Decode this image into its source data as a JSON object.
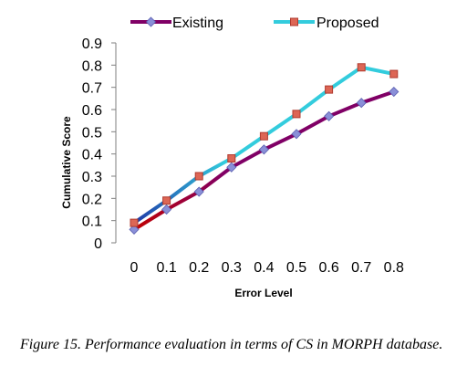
{
  "caption": {
    "label": "Figure 15.",
    "text": "Performance evaluation in terms of CS in MORPH database."
  },
  "chart_data": {
    "type": "line",
    "xlabel": "Error Level",
    "ylabel": "Cumulative Score",
    "x": [
      0,
      0.1,
      0.2,
      0.3,
      0.4,
      0.5,
      0.6,
      0.7,
      0.8
    ],
    "x_tick_labels": [
      "0",
      "0.1",
      "0.2",
      "0.3",
      "0.4",
      "0.5",
      "0.6",
      "0.7",
      "0.8"
    ],
    "y_tick_labels": [
      "0",
      "0.1",
      "0.2",
      "0.3",
      "0.4",
      "0.5",
      "0.6",
      "0.7",
      "0.8",
      "0.9"
    ],
    "ylim": [
      0,
      0.9
    ],
    "grid": false,
    "legend_position": "top",
    "series": [
      {
        "name": "Existing",
        "values": [
          0.06,
          0.15,
          0.23,
          0.34,
          0.42,
          0.49,
          0.57,
          0.63,
          0.68
        ],
        "line_color": "#800066",
        "line_color_start": "#c00000",
        "marker": "diamond",
        "marker_color": "#8a8fd8"
      },
      {
        "name": "Proposed",
        "values": [
          0.09,
          0.19,
          0.3,
          0.38,
          0.48,
          0.58,
          0.69,
          0.79,
          0.76
        ],
        "line_color": "#33ccdd",
        "line_color_start": "#1f3aa8",
        "marker": "square",
        "marker_color": "#dd6655"
      }
    ]
  }
}
